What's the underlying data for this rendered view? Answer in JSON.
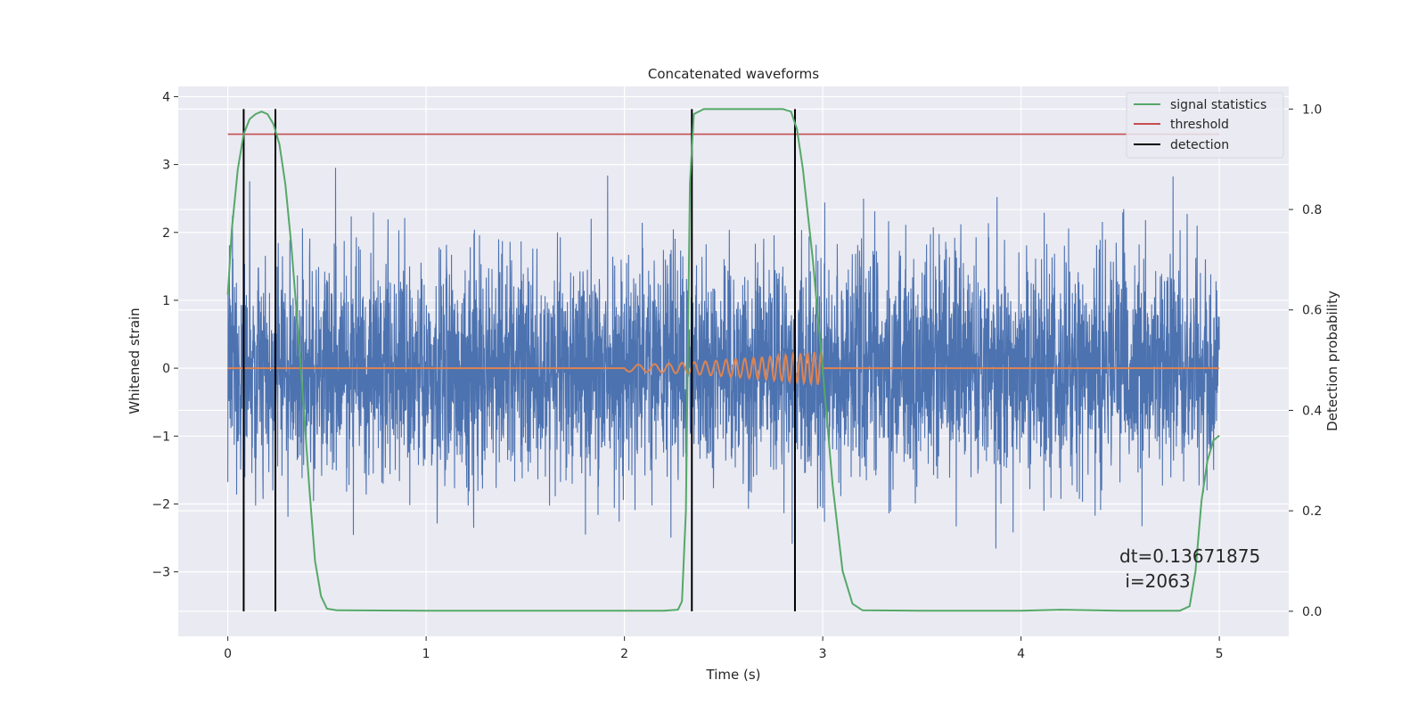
{
  "chart_data": {
    "type": "line",
    "title": "Concatenated waveforms",
    "xlabel": "Time (s)",
    "ylabel": "Whitened strain",
    "ylabel_right": "Detection probability",
    "xlim": [
      -0.25,
      5.35
    ],
    "ylim": [
      -3.95,
      4.15
    ],
    "ylim_right": [
      -0.05,
      1.045
    ],
    "x_ticks": [
      0,
      1,
      2,
      3,
      4,
      5
    ],
    "y_ticks": [
      -3,
      -2,
      -1,
      0,
      1,
      2,
      3,
      4
    ],
    "y_ticks_right": [
      0.0,
      0.2,
      0.4,
      0.6,
      0.8,
      1.0
    ],
    "x_tick_labels": [
      "0",
      "1",
      "2",
      "3",
      "4",
      "5"
    ],
    "y_tick_labels": [
      "−3",
      "−2",
      "−1",
      "0",
      "1",
      "2",
      "3",
      "4"
    ],
    "y_tick_labels_right": [
      "0.0",
      "0.2",
      "0.4",
      "0.6",
      "0.8",
      "1.0"
    ],
    "grid": true,
    "legend_position": "top-right",
    "legend": [
      {
        "label": "signal statistics",
        "color": "#55a868"
      },
      {
        "label": "threshold",
        "color": "#c44e52"
      },
      {
        "label": "detection",
        "color": "#000000"
      }
    ],
    "noise": {
      "color": "#4c72b0",
      "t_start": 0,
      "t_end": 5,
      "sigma": 0.8,
      "peak_max": 3.8,
      "peak_min": -3.6
    },
    "chirp": {
      "color": "#dd8452",
      "t_start": 2.0,
      "t_end": 3.0,
      "amp_start": 0.05,
      "amp_end": 0.25,
      "flat_from": 0,
      "flat_to": 5
    },
    "threshold": {
      "value": 0.95,
      "t_start": 0,
      "t_end": 5
    },
    "signal_statistics": {
      "t": [
        0.0,
        0.02,
        0.05,
        0.08,
        0.11,
        0.14,
        0.17,
        0.2,
        0.23,
        0.26,
        0.29,
        0.32,
        0.35,
        0.38,
        0.41,
        0.44,
        0.47,
        0.5,
        0.55,
        1.0,
        2.0,
        2.2,
        2.27,
        2.29,
        2.31,
        2.33,
        2.35,
        2.4,
        2.5,
        2.8,
        2.84,
        2.87,
        2.9,
        2.95,
        3.0,
        3.05,
        3.1,
        3.15,
        3.2,
        3.5,
        4.0,
        4.2,
        4.5,
        4.8,
        4.85,
        4.88,
        4.91,
        4.94,
        4.97,
        5.0
      ],
      "p": [
        0.63,
        0.76,
        0.88,
        0.95,
        0.98,
        0.99,
        0.995,
        0.99,
        0.97,
        0.93,
        0.85,
        0.73,
        0.58,
        0.42,
        0.25,
        0.1,
        0.03,
        0.005,
        0.002,
        0.001,
        0.001,
        0.001,
        0.003,
        0.02,
        0.2,
        0.85,
        0.99,
        1.0,
        1.0,
        1.0,
        0.995,
        0.96,
        0.88,
        0.7,
        0.48,
        0.25,
        0.08,
        0.015,
        0.002,
        0.001,
        0.001,
        0.003,
        0.001,
        0.001,
        0.01,
        0.08,
        0.22,
        0.3,
        0.34,
        0.35
      ]
    },
    "detections": [
      0.08,
      0.24,
      2.34,
      2.86
    ],
    "annotation": {
      "line1": "dt=0.13671875",
      "line2": " i=2063"
    }
  }
}
